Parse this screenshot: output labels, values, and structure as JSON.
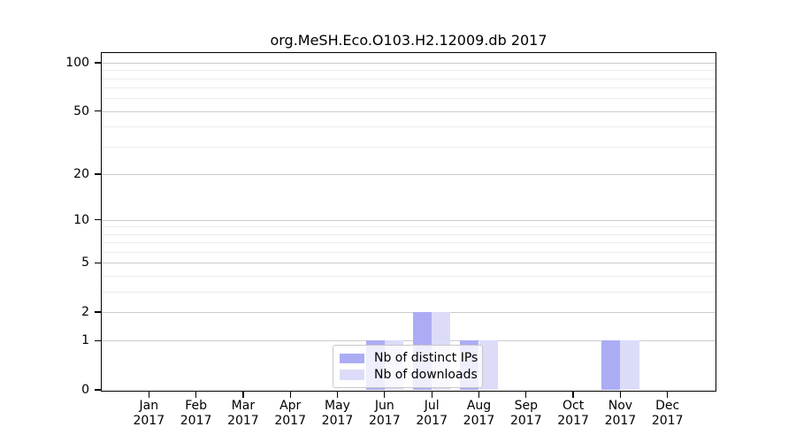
{
  "chart_data": {
    "type": "bar",
    "title": "org.MeSH.Eco.O103.H2.12009.db 2017",
    "categories": [
      {
        "month": "Jan",
        "year": "2017"
      },
      {
        "month": "Feb",
        "year": "2017"
      },
      {
        "month": "Mar",
        "year": "2017"
      },
      {
        "month": "Apr",
        "year": "2017"
      },
      {
        "month": "May",
        "year": "2017"
      },
      {
        "month": "Jun",
        "year": "2017"
      },
      {
        "month": "Jul",
        "year": "2017"
      },
      {
        "month": "Aug",
        "year": "2017"
      },
      {
        "month": "Sep",
        "year": "2017"
      },
      {
        "month": "Oct",
        "year": "2017"
      },
      {
        "month": "Nov",
        "year": "2017"
      },
      {
        "month": "Dec",
        "year": "2017"
      }
    ],
    "series": [
      {
        "name": "Nb of distinct IPs",
        "color": "#acacf5",
        "values": [
          0,
          0,
          0,
          0,
          0,
          1,
          2,
          1,
          0,
          0,
          1,
          0
        ]
      },
      {
        "name": "Nb of downloads",
        "color": "#dcdcf9",
        "values": [
          0,
          0,
          0,
          0,
          0,
          1,
          2,
          1,
          0,
          0,
          1,
          0
        ]
      }
    ],
    "xlabel": "",
    "ylabel": "",
    "y_axis": {
      "scale": "log1p",
      "major_ticks": [
        0,
        1,
        2,
        5,
        10,
        20,
        50,
        100
      ],
      "minor_gridlines": [
        3,
        4,
        6,
        7,
        8,
        9,
        30,
        40,
        60,
        70,
        80,
        90
      ],
      "ylim": [
        0,
        114.8
      ]
    },
    "grid": true,
    "legend_position": "inside-bottom-center",
    "colors": {
      "major_grid": "#cbcbcb",
      "minor_grid": "#ececec",
      "spine": "#000000",
      "background": "#ffffff"
    }
  }
}
